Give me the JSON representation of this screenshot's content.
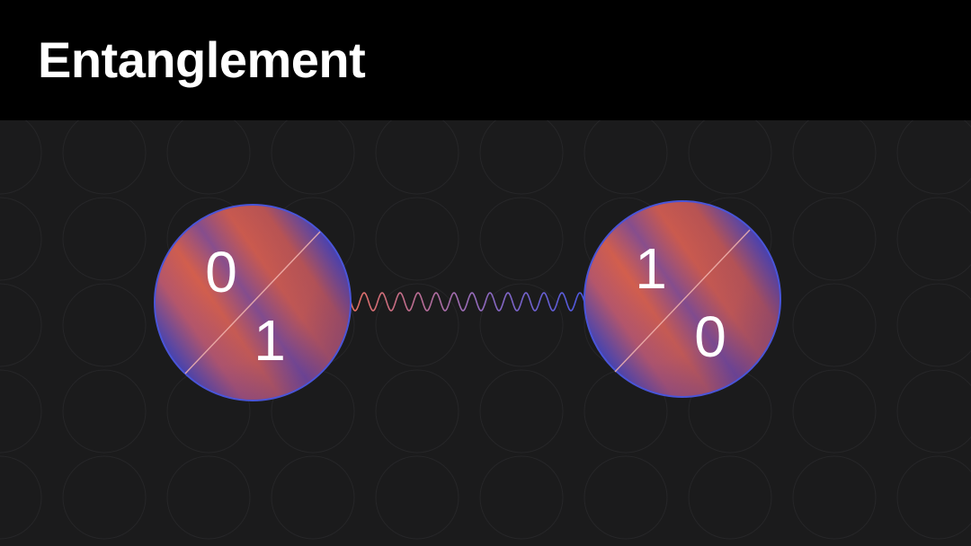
{
  "title": "Entanglement",
  "colors": {
    "background": "#1b1b1c",
    "header": "#000000",
    "coral": "#d15a45",
    "violet": "#5a4bb8",
    "outline": "#4a55d8"
  },
  "qubits": [
    {
      "top": "0",
      "bottom": "1"
    },
    {
      "top": "1",
      "bottom": "0"
    }
  ]
}
